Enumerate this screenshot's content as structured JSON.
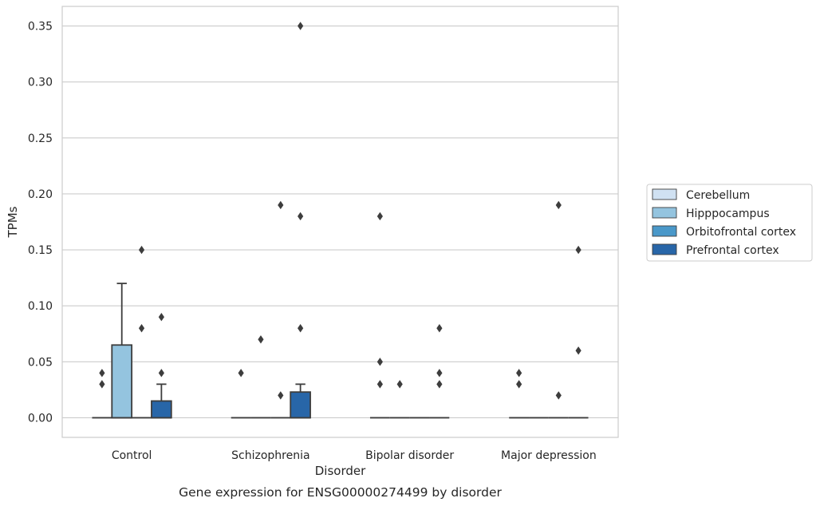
{
  "chart_data": {
    "type": "box",
    "title": "",
    "caption": "Gene expression for ENSG00000274499 by disorder",
    "xlabel": "Disorder",
    "ylabel": "TPMs",
    "ylim": [
      -0.0175,
      0.3675
    ],
    "yticks": [
      "0.00",
      "0.05",
      "0.10",
      "0.15",
      "0.20",
      "0.25",
      "0.30",
      "0.35"
    ],
    "yticks_values": [
      0,
      0.05,
      0.1,
      0.15,
      0.2,
      0.25,
      0.3,
      0.35
    ],
    "grid": "horizontal",
    "legend_placement": "right",
    "categories": [
      "Control",
      "Schizophrenia",
      "Bipolar disorder",
      "Major depression"
    ],
    "series": [
      {
        "name": "Cerebellum",
        "color": "#d0e1f2",
        "boxes": [
          {
            "q1": 0,
            "median": 0,
            "q3": 0,
            "whisker_low": 0,
            "whisker_high": 0,
            "outliers": [
              0.03,
              0.04
            ]
          },
          {
            "q1": 0,
            "median": 0,
            "q3": 0,
            "whisker_low": 0,
            "whisker_high": 0,
            "outliers": [
              0.04
            ]
          },
          {
            "q1": 0,
            "median": 0,
            "q3": 0,
            "whisker_low": 0,
            "whisker_high": 0,
            "outliers": [
              0.03,
              0.05,
              0.18
            ]
          },
          {
            "q1": 0,
            "median": 0,
            "q3": 0,
            "whisker_low": 0,
            "whisker_high": 0,
            "outliers": [
              0.03,
              0.04
            ]
          }
        ]
      },
      {
        "name": "Hipppocampus",
        "color": "#94c4df",
        "boxes": [
          {
            "q1": 0,
            "median": 0,
            "q3": 0.065,
            "whisker_low": 0,
            "whisker_high": 0.12,
            "outliers": []
          },
          {
            "q1": 0,
            "median": 0,
            "q3": 0,
            "whisker_low": 0,
            "whisker_high": 0,
            "outliers": [
              0.07
            ]
          },
          {
            "q1": 0,
            "median": 0,
            "q3": 0,
            "whisker_low": 0,
            "whisker_high": 0,
            "outliers": [
              0.03
            ]
          },
          {
            "q1": 0,
            "median": 0,
            "q3": 0,
            "whisker_low": 0,
            "whisker_high": 0,
            "outliers": []
          }
        ]
      },
      {
        "name": "Orbitofrontal cortex",
        "color": "#4a98c9",
        "boxes": [
          {
            "q1": 0,
            "median": 0,
            "q3": 0,
            "whisker_low": 0,
            "whisker_high": 0,
            "outliers": [
              0.08,
              0.15
            ]
          },
          {
            "q1": 0,
            "median": 0,
            "q3": 0,
            "whisker_low": 0,
            "whisker_high": 0,
            "outliers": [
              0.02,
              0.19
            ]
          },
          {
            "q1": 0,
            "median": 0,
            "q3": 0,
            "whisker_low": 0,
            "whisker_high": 0,
            "outliers": []
          },
          {
            "q1": 0,
            "median": 0,
            "q3": 0,
            "whisker_low": 0,
            "whisker_high": 0,
            "outliers": [
              0.02,
              0.19
            ]
          }
        ]
      },
      {
        "name": "Prefrontal cortex",
        "color": "#2866a8",
        "boxes": [
          {
            "q1": 0,
            "median": 0,
            "q3": 0.015,
            "whisker_low": 0,
            "whisker_high": 0.03,
            "outliers": [
              0.04,
              0.09
            ]
          },
          {
            "q1": 0,
            "median": 0,
            "q3": 0.023,
            "whisker_low": 0,
            "whisker_high": 0.03,
            "outliers": [
              0.08,
              0.18,
              0.35
            ]
          },
          {
            "q1": 0,
            "median": 0,
            "q3": 0,
            "whisker_low": 0,
            "whisker_high": 0,
            "outliers": [
              0.03,
              0.04,
              0.08
            ]
          },
          {
            "q1": 0,
            "median": 0,
            "q3": 0,
            "whisker_low": 0,
            "whisker_high": 0,
            "outliers": [
              0.06,
              0.15
            ]
          }
        ]
      }
    ]
  }
}
